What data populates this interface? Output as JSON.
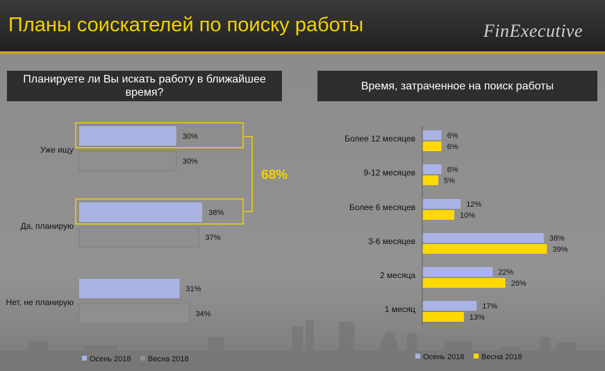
{
  "header": {
    "title": "Планы соискателей по поиску работы",
    "brand": "FinExecutive"
  },
  "colors": {
    "autumn_bar": "#a9b3e6",
    "spring_left_bar": "#8f8f8f",
    "spring_right_bar": "#ffd800",
    "highlight": "#f2d200"
  },
  "chart_data": [
    {
      "type": "bar",
      "orientation": "horizontal",
      "title": "Планируете ли Вы искать работу в ближайшее время?",
      "categories": [
        "Уже ищу",
        "Да, планирую",
        "Нет, не планирую"
      ],
      "series": [
        {
          "name": "Осень 2018",
          "values": [
            30,
            38,
            31
          ],
          "labels": [
            "30%",
            "38%",
            "31%"
          ]
        },
        {
          "name": "Весна 2018",
          "values": [
            30,
            37,
            34
          ],
          "labels": [
            "30%",
            "37%",
            "34%"
          ]
        }
      ],
      "annotation": "68%",
      "xlim": [
        0,
        100
      ],
      "grid": false,
      "legend": "bottom"
    },
    {
      "type": "bar",
      "orientation": "horizontal",
      "title": "Время, затраченное на поиск работы",
      "categories": [
        "Более 12 месяцев",
        "9-12 месяцев",
        "Более 6 месяцев",
        "3-6 месяцев",
        "2 месяца",
        "1 месяц"
      ],
      "series": [
        {
          "name": "Осень 2018",
          "values": [
            6,
            6,
            12,
            38,
            22,
            17
          ],
          "labels": [
            "6%",
            "6%",
            "12%",
            "38%",
            "22%",
            "17%"
          ]
        },
        {
          "name": "Весна 2018",
          "values": [
            6,
            5,
            10,
            39,
            26,
            13
          ],
          "labels": [
            "6%",
            "5%",
            "10%",
            "39%",
            "26%",
            "13%"
          ]
        }
      ],
      "xlim": [
        0,
        40
      ],
      "grid": false,
      "legend": "bottom"
    }
  ]
}
